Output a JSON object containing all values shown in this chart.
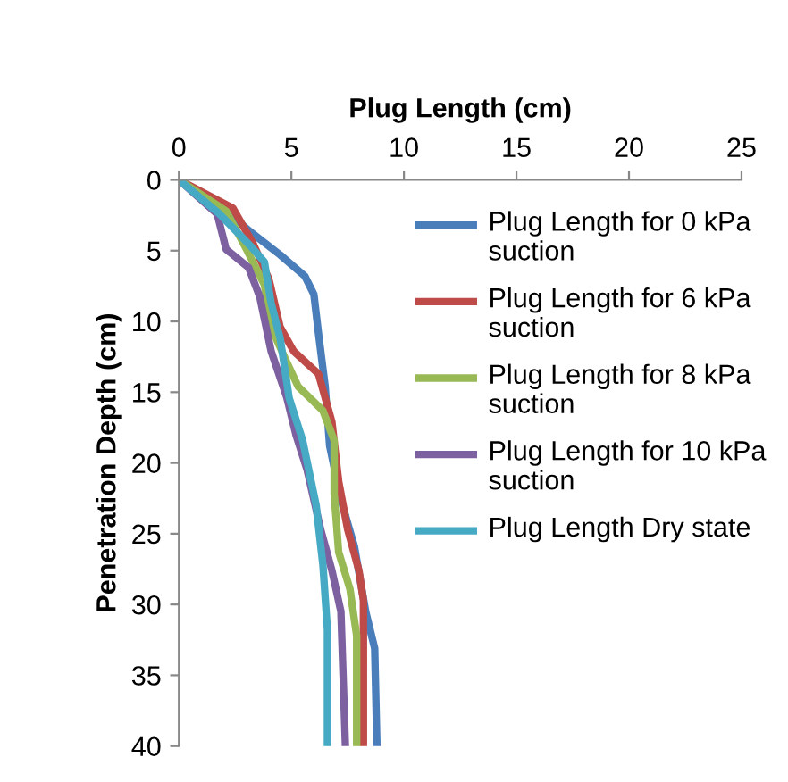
{
  "chart_data": {
    "type": "line",
    "xlabel": "Plug Length (cm)",
    "ylabel": "Penetration Depth (cm)",
    "xlim": [
      0,
      25
    ],
    "xticks": [
      0,
      5,
      10,
      15,
      20,
      25
    ],
    "ylim": [
      40,
      0
    ],
    "yticks": [
      0,
      5,
      10,
      15,
      20,
      25,
      30,
      35,
      40
    ],
    "grid": false,
    "legend": "right",
    "marker": "none",
    "line_style": "solid",
    "series": [
      {
        "name": "Plug Length for 0 kPa suction",
        "color": "#4a7ebb",
        "x": [
          0,
          1.8,
          3.2,
          4.5,
          5.6,
          6.0,
          6.2,
          6.5,
          6.7,
          7.2,
          7.8,
          8.3,
          8.7,
          8.8
        ],
        "values": [
          0,
          1.8,
          3.7,
          5.3,
          6.8,
          8.1,
          10.8,
          14.6,
          18.8,
          22.6,
          25.9,
          30.5,
          33.1,
          40
        ]
      },
      {
        "name": "Plug Length for 6 kPa suction",
        "color": "#be4b48",
        "x": [
          0,
          2.4,
          3.3,
          4.0,
          4.5,
          5.1,
          6.2,
          6.8,
          7.1,
          7.5,
          8.0,
          8.2,
          8.2
        ],
        "values": [
          0,
          2.0,
          4.5,
          7.0,
          10.4,
          12.1,
          13.7,
          17.1,
          21.3,
          24.7,
          27.6,
          29.7,
          40
        ]
      },
      {
        "name": "Plug Length for 8 kPa suction",
        "color": "#98b954",
        "x": [
          0,
          2.1,
          3.0,
          3.8,
          4.1,
          4.8,
          5.3,
          6.4,
          6.9,
          6.9,
          7.1,
          7.6,
          7.9,
          7.9
        ],
        "values": [
          0,
          2.2,
          4.9,
          7.4,
          10.4,
          12.9,
          14.6,
          16.3,
          18.4,
          22.2,
          26.3,
          28.9,
          32.2,
          40
        ]
      },
      {
        "name": "Plug Length for 10 kPa suction",
        "color": "#7d60a0",
        "x": [
          0,
          1.7,
          2.1,
          3.1,
          3.6,
          4.1,
          4.8,
          5.2,
          5.7,
          6.3,
          6.8,
          7.2,
          7.4
        ],
        "values": [
          0,
          2.4,
          4.9,
          6.2,
          8.3,
          12.1,
          15.4,
          18.0,
          20.5,
          24.7,
          27.6,
          30.5,
          40
        ]
      },
      {
        "name": "Plug Length Dry state",
        "color": "#46aac5",
        "x": [
          0,
          1.8,
          3.2,
          3.8,
          4.1,
          4.5,
          4.9,
          5.5,
          6.1,
          6.4,
          6.6,
          6.6
        ],
        "values": [
          0,
          2.4,
          4.7,
          5.8,
          8.7,
          11.2,
          15.4,
          18.4,
          23.0,
          27.2,
          31.8,
          40
        ]
      }
    ]
  }
}
